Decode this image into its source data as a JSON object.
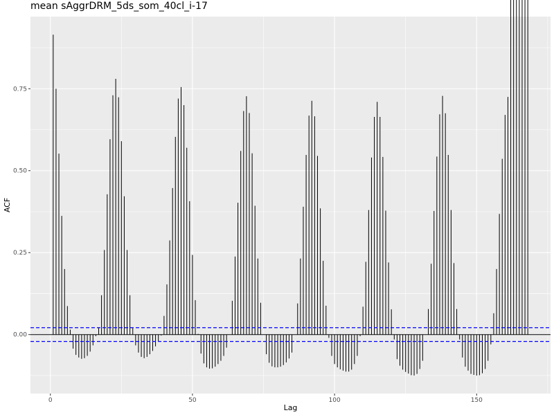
{
  "chart_data": {
    "type": "bar",
    "title": "mean sAggrDRM_5ds_som_40cl_i-17",
    "xlabel": "Lag",
    "ylabel": "ACF",
    "xlim": [
      -7,
      176
    ],
    "ylim": [
      -0.18,
      0.97
    ],
    "x_ticks": [
      0,
      50,
      100,
      150
    ],
    "x_tick_labels": [
      "0",
      "50",
      "100",
      "150"
    ],
    "y_ticks": [
      0,
      0.25,
      0.5,
      0.75
    ],
    "y_tick_labels": [
      "0.00",
      "0.25",
      "0.50",
      "0.75"
    ],
    "grid": true,
    "confidence_bounds": [
      0.021,
      -0.021
    ],
    "colors": {
      "panel": "#ebebeb",
      "grid": "#ffffff",
      "bars": "#000000",
      "bounds": "#0000ff"
    },
    "lags": [
      1,
      2,
      3,
      4,
      5,
      6,
      7,
      8,
      9,
      10,
      11,
      12,
      13,
      14,
      15,
      16,
      17,
      18,
      19,
      20,
      21,
      22,
      23,
      24,
      25,
      26,
      27,
      28,
      29,
      30,
      31,
      32,
      33,
      34,
      35,
      36,
      37,
      38,
      39,
      40,
      41,
      42,
      43,
      44,
      45,
      46,
      47,
      48,
      49,
      50,
      51,
      52,
      53,
      54,
      55,
      56,
      57,
      58,
      59,
      60,
      61,
      62,
      63,
      64,
      65,
      66,
      67,
      68,
      69,
      70,
      71,
      72,
      73,
      74,
      75,
      76,
      77,
      78,
      79,
      80,
      81,
      82,
      83,
      84,
      85,
      86,
      87,
      88,
      89,
      90,
      91,
      92,
      93,
      94,
      95,
      96,
      97,
      98,
      99,
      100,
      101,
      102,
      103,
      104,
      105,
      106,
      107,
      108,
      109,
      110,
      111,
      112,
      113,
      114,
      115,
      116,
      117,
      118,
      119,
      120,
      121,
      122,
      123,
      124,
      125,
      126,
      127,
      128,
      129,
      130,
      131,
      132,
      133,
      134,
      135,
      136,
      137,
      138,
      139,
      140,
      141,
      142,
      143,
      144,
      145,
      146,
      147,
      148,
      149,
      150,
      151,
      152,
      153,
      154,
      155,
      156,
      157,
      158,
      159,
      160,
      161,
      162,
      163,
      164,
      165,
      166,
      167,
      168
    ],
    "values": [
      0.915,
      0.75,
      0.552,
      0.362,
      0.2,
      0.087,
      0.015,
      -0.043,
      -0.062,
      -0.07,
      -0.074,
      -0.072,
      -0.065,
      -0.052,
      -0.033,
      -0.005,
      0.021,
      0.12,
      0.258,
      0.428,
      0.596,
      0.73,
      0.78,
      0.724,
      0.59,
      0.422,
      0.258,
      0.12,
      0.02,
      -0.033,
      -0.055,
      -0.068,
      -0.072,
      -0.068,
      -0.06,
      -0.05,
      -0.036,
      -0.02,
      -0.003,
      0.057,
      0.153,
      0.287,
      0.447,
      0.603,
      0.72,
      0.755,
      0.7,
      0.57,
      0.407,
      0.243,
      0.105,
      0.002,
      -0.058,
      -0.088,
      -0.1,
      -0.104,
      -0.103,
      -0.098,
      -0.09,
      -0.08,
      -0.065,
      -0.04,
      0.0,
      0.103,
      0.238,
      0.402,
      0.56,
      0.682,
      0.727,
      0.676,
      0.553,
      0.393,
      0.232,
      0.097,
      0.0,
      -0.06,
      -0.086,
      -0.097,
      -0.1,
      -0.1,
      -0.098,
      -0.093,
      -0.085,
      -0.073,
      -0.055,
      0.0,
      0.095,
      0.232,
      0.39,
      0.548,
      0.668,
      0.713,
      0.666,
      0.545,
      0.385,
      0.225,
      0.088,
      -0.01,
      -0.065,
      -0.09,
      -0.1,
      -0.106,
      -0.11,
      -0.113,
      -0.113,
      -0.107,
      -0.09,
      -0.065,
      -0.005,
      0.085,
      0.222,
      0.38,
      0.54,
      0.664,
      0.71,
      0.664,
      0.542,
      0.378,
      0.22,
      0.077,
      -0.015,
      -0.075,
      -0.095,
      -0.107,
      -0.114,
      -0.119,
      -0.124,
      -0.125,
      -0.12,
      -0.105,
      -0.08,
      0.0,
      0.078,
      0.216,
      0.377,
      0.543,
      0.672,
      0.728,
      0.675,
      0.548,
      0.38,
      0.218,
      0.078,
      -0.015,
      -0.07,
      -0.098,
      -0.11,
      -0.12,
      -0.123,
      -0.125,
      -0.124,
      -0.118,
      -0.105,
      -0.08,
      -0.03,
      0.065,
      0.2,
      0.368,
      0.536,
      0.67,
      0.725
    ]
  }
}
